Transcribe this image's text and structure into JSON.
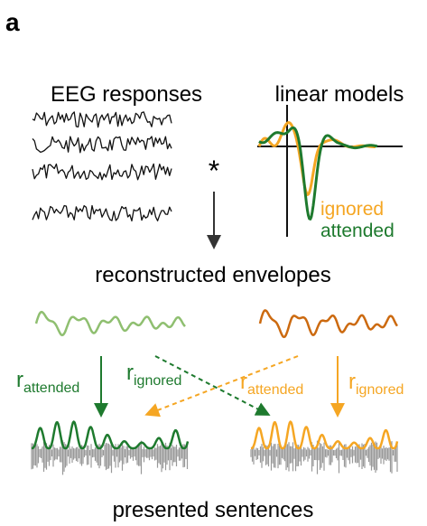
{
  "panel_label": "a",
  "inputs": {
    "eeg": "EEG responses",
    "models": "linear models",
    "operator": "*"
  },
  "model_legend": {
    "ignored": "ignored",
    "attended": "attended"
  },
  "middle_label": "reconstructed envelopes",
  "arrows": [
    {
      "symbol": "r",
      "subscript": "attended"
    },
    {
      "symbol": "r",
      "subscript": "ignored"
    },
    {
      "symbol": "r",
      "subscript": "attended"
    },
    {
      "symbol": "r",
      "subscript": "ignored"
    }
  ],
  "bottom_label": "presented sentences"
}
